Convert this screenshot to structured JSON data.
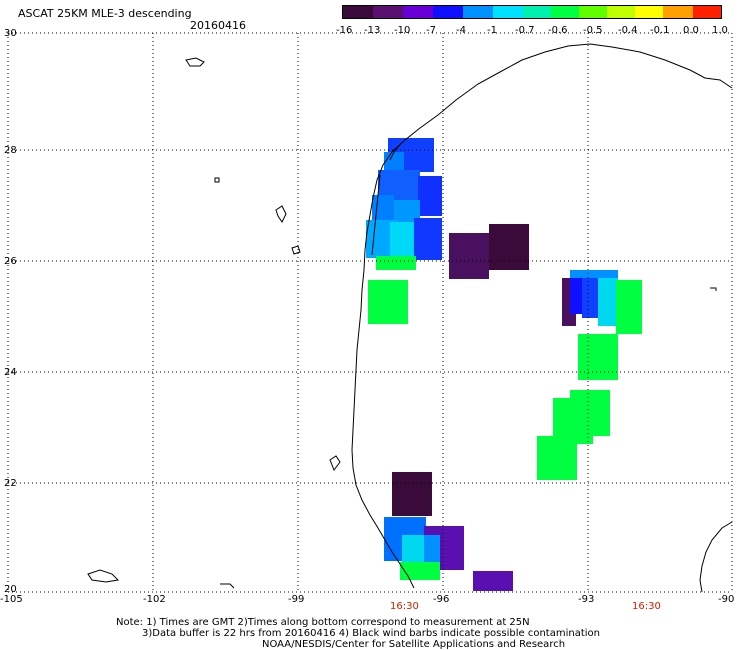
{
  "header": {
    "title": "ASCAT 25KM MLE-3 descending",
    "date": "20160416"
  },
  "colorbar": {
    "labels": [
      "-16",
      "-13",
      "-10",
      "-7",
      "-4",
      "-1",
      "-0.7",
      "-0.6",
      "-0.5",
      "-0.4",
      "-0.1",
      "0.0",
      "1.0"
    ],
    "colors": [
      "#3a0a3a",
      "#5a1070",
      "#6a00d8",
      "#1010ff",
      "#0090ff",
      "#00e0ff",
      "#00f0b0",
      "#00ff40",
      "#60ff00",
      "#c0ff00",
      "#ffff00",
      "#ffa000",
      "#ff2000"
    ]
  },
  "map": {
    "lat_labels": [
      "30",
      "28",
      "26",
      "24",
      "22",
      "20"
    ],
    "lon_labels": [
      "-105",
      "-102",
      "-99",
      "-96",
      "-93",
      "-90"
    ],
    "times": [
      "16:30",
      "16:30"
    ]
  },
  "footer": {
    "note1": "Note: 1) Times are GMT 2)Times along bottom correspond to measurement at 25N",
    "note2": "3)Data buffer is 22 hrs from 20160416 4) Black wind barbs indicate possible contamination",
    "credit": "NOAA/NESDIS/Center for Satellite Applications and Research"
  }
}
